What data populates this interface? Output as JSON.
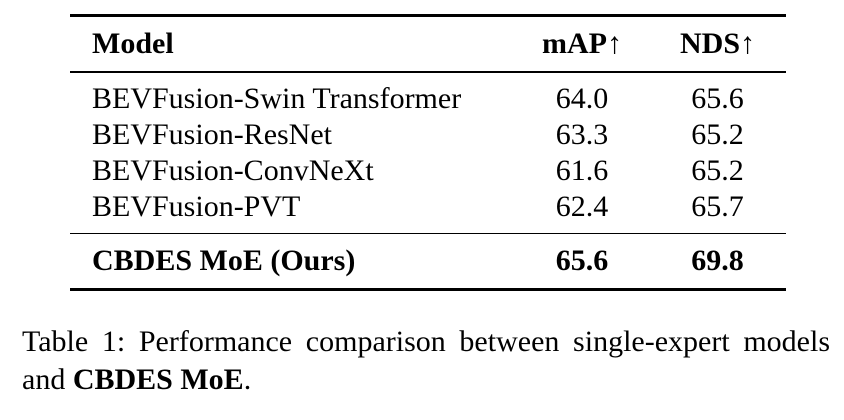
{
  "table": {
    "headers": {
      "model": "Model",
      "map": "mAP↑",
      "nds": "NDS↑"
    },
    "rows": [
      {
        "model": "BEVFusion-Swin Transformer",
        "map": "64.0",
        "nds": "65.6"
      },
      {
        "model": "BEVFusion-ResNet",
        "map": "63.3",
        "nds": "65.2"
      },
      {
        "model": "BEVFusion-ConvNeXt",
        "map": "61.6",
        "nds": "65.2"
      },
      {
        "model": "BEVFusion-PVT",
        "map": "62.4",
        "nds": "65.7"
      }
    ],
    "best_row": {
      "model": "CBDES MoE (Ours)",
      "map": "65.6",
      "nds": "69.8"
    }
  },
  "caption": {
    "prefix": "Table 1: Performance comparison between single-expert models and ",
    "bold": "CBDES MoE",
    "suffix": "."
  }
}
